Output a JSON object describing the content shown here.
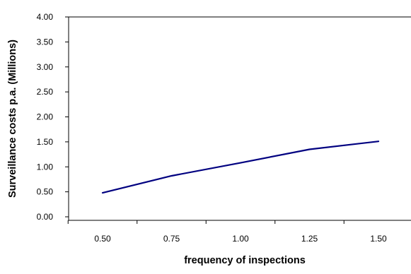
{
  "chart_data": {
    "type": "line",
    "x": [
      0.5,
      0.75,
      1.0,
      1.25,
      1.5
    ],
    "x_tick_labels": [
      "0.50",
      "0.75",
      "1.00",
      "1.25",
      "1.50"
    ],
    "series": [
      {
        "values": [
          0.48,
          0.82,
          1.08,
          1.35,
          1.51
        ],
        "color": "#000080"
      }
    ],
    "xlabel": "frequency of inspections",
    "ylabel": "Surveillance costs p.a. (Millions)",
    "ylim": [
      0,
      4
    ],
    "y_ticks": [
      0,
      0.5,
      1,
      1.5,
      2,
      2.5,
      3,
      3.5,
      4
    ],
    "y_tick_labels": [
      "0.00",
      "0.50",
      "1.00",
      "1.50",
      "2.00",
      "2.50",
      "3.00",
      "3.50",
      "4.00"
    ],
    "grid": false,
    "legend": "none"
  }
}
